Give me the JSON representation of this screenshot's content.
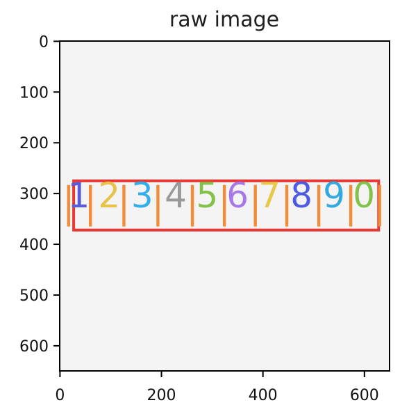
{
  "chart_data": {
    "type": "image",
    "title": "raw image",
    "xlabel": "",
    "ylabel": "",
    "xlim": [
      -0.5,
      649.5
    ],
    "ylim": [
      649.5,
      -0.5
    ],
    "x_ticks": [
      0,
      200,
      400,
      600
    ],
    "y_ticks": [
      0,
      100,
      200,
      300,
      400,
      500,
      600
    ],
    "grid": false,
    "colors": {
      "background": "#f4f4f4",
      "frame": "#000000",
      "bounding_box": "#e53935",
      "segment_marker": "#f28c38"
    },
    "digits": [
      {
        "label": "1",
        "x": 37,
        "y": 305,
        "color": "#5b5bdd"
      },
      {
        "label": "2",
        "x": 97,
        "y": 305,
        "color": "#e9c24a"
      },
      {
        "label": "3",
        "x": 162,
        "y": 305,
        "color": "#33aee8"
      },
      {
        "label": "4",
        "x": 228,
        "y": 305,
        "color": "#9a9a9a"
      },
      {
        "label": "5",
        "x": 290,
        "y": 305,
        "color": "#82c24a"
      },
      {
        "label": "6",
        "x": 350,
        "y": 305,
        "color": "#a978e8"
      },
      {
        "label": "7",
        "x": 413,
        "y": 305,
        "color": "#e8c84a"
      },
      {
        "label": "8",
        "x": 476,
        "y": 305,
        "color": "#4d5ae3"
      },
      {
        "label": "9",
        "x": 540,
        "y": 305,
        "color": "#33a9e0"
      },
      {
        "label": "0",
        "x": 599,
        "y": 305,
        "color": "#82c24a"
      }
    ],
    "bounding_box": {
      "x0": 27,
      "x1": 628,
      "y0": 275,
      "y1": 372
    },
    "segment_markers": [
      {
        "x0": 14,
        "x1": 20,
        "y0": 283,
        "y1": 365
      },
      {
        "x0": 57,
        "x1": 63,
        "y0": 283,
        "y1": 365
      },
      {
        "x0": 123,
        "x1": 129,
        "y0": 283,
        "y1": 365
      },
      {
        "x0": 190,
        "x1": 196,
        "y0": 283,
        "y1": 365
      },
      {
        "x0": 258,
        "x1": 264,
        "y0": 283,
        "y1": 365
      },
      {
        "x0": 321,
        "x1": 327,
        "y0": 283,
        "y1": 365
      },
      {
        "x0": 382,
        "x1": 388,
        "y0": 283,
        "y1": 365
      },
      {
        "x0": 444,
        "x1": 450,
        "y0": 283,
        "y1": 365
      },
      {
        "x0": 507,
        "x1": 513,
        "y0": 283,
        "y1": 365
      },
      {
        "x0": 570,
        "x1": 576,
        "y0": 283,
        "y1": 365
      },
      {
        "x0": 627,
        "x1": 633,
        "y0": 283,
        "y1": 365
      }
    ]
  }
}
